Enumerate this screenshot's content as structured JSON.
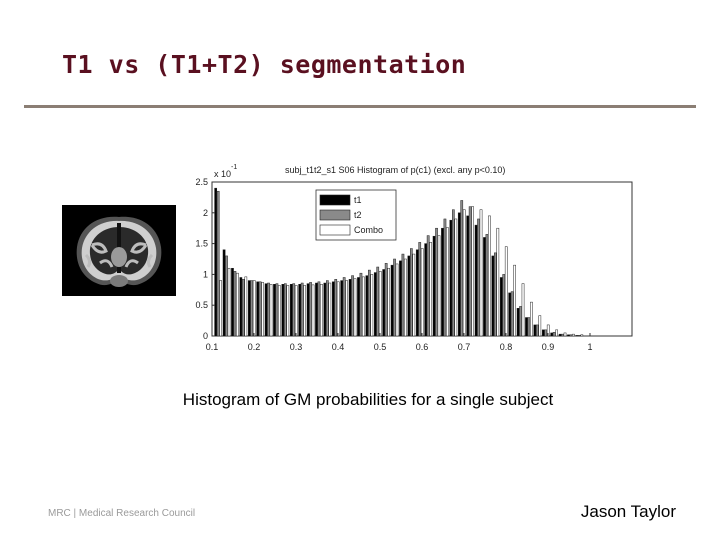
{
  "slide": {
    "title": "T1 vs (T1+T2) segmentation",
    "caption": "Histogram of GM probabilities for a single subject",
    "author": "Jason Taylor",
    "footer_logo": "MRC | Medical Research Council"
  },
  "chart_data": {
    "type": "bar",
    "title": "subj_t1t2_s1 S06 Histogram of p(c1) (excl. any p<0.10)",
    "y_exponent": "x 10",
    "y_exponent_power": "-1",
    "xlabel": "",
    "ylabel": "",
    "xlim": [
      0.1,
      1.0
    ],
    "ylim": [
      0,
      2.5
    ],
    "x_ticks": [
      0.1,
      0.2,
      0.3,
      0.4,
      0.5,
      0.6,
      0.7,
      0.8,
      0.9,
      1
    ],
    "y_ticks": [
      0,
      0.5,
      1,
      1.5,
      2,
      2.5
    ],
    "x_tick_labels": [
      "0.1",
      "0.2",
      "0.3",
      "0.4",
      "0.5",
      "0.6",
      "0.7",
      "0.8",
      "0.9",
      "1"
    ],
    "y_tick_labels": [
      "0",
      "0.5",
      "1",
      "1.5",
      "2",
      "2.5"
    ],
    "bin_centers": [
      0.115,
      0.135,
      0.155,
      0.175,
      0.195,
      0.215,
      0.235,
      0.255,
      0.275,
      0.295,
      0.315,
      0.335,
      0.355,
      0.375,
      0.395,
      0.415,
      0.435,
      0.455,
      0.475,
      0.495,
      0.515,
      0.535,
      0.555,
      0.575,
      0.595,
      0.615,
      0.635,
      0.655,
      0.675,
      0.695,
      0.715,
      0.735,
      0.755,
      0.775,
      0.795,
      0.815,
      0.835,
      0.855,
      0.875,
      0.895,
      0.915,
      0.935,
      0.955,
      0.975
    ],
    "legend_position": "top-left",
    "series": [
      {
        "name": "t1",
        "color": "#000000",
        "values": [
          2.4,
          1.4,
          1.1,
          0.95,
          0.9,
          0.88,
          0.85,
          0.84,
          0.84,
          0.84,
          0.84,
          0.85,
          0.86,
          0.86,
          0.88,
          0.9,
          0.92,
          0.95,
          0.98,
          1.03,
          1.08,
          1.15,
          1.22,
          1.3,
          1.4,
          1.5,
          1.62,
          1.75,
          1.88,
          2.0,
          1.95,
          1.8,
          1.6,
          1.3,
          0.95,
          0.7,
          0.45,
          0.3,
          0.18,
          0.1,
          0.05,
          0.03,
          0.02,
          0.01
        ]
      },
      {
        "name": "t2",
        "color": "#8a8a8a",
        "values": [
          2.35,
          1.3,
          1.05,
          0.92,
          0.9,
          0.88,
          0.86,
          0.85,
          0.85,
          0.85,
          0.86,
          0.87,
          0.88,
          0.9,
          0.92,
          0.95,
          0.98,
          1.02,
          1.07,
          1.12,
          1.18,
          1.25,
          1.33,
          1.42,
          1.52,
          1.63,
          1.75,
          1.9,
          2.05,
          2.2,
          2.1,
          1.9,
          1.65,
          1.35,
          1.0,
          0.72,
          0.48,
          0.3,
          0.18,
          0.1,
          0.06,
          0.03,
          0.02,
          0.01
        ]
      },
      {
        "name": "Combo",
        "color": "#ffffff",
        "values": [
          0.9,
          1.1,
          1.02,
          0.96,
          0.9,
          0.87,
          0.84,
          0.82,
          0.82,
          0.82,
          0.82,
          0.83,
          0.84,
          0.86,
          0.88,
          0.9,
          0.93,
          0.96,
          1.0,
          1.05,
          1.1,
          1.17,
          1.25,
          1.33,
          1.42,
          1.52,
          1.63,
          1.76,
          1.9,
          2.05,
          2.1,
          2.05,
          1.95,
          1.75,
          1.45,
          1.15,
          0.85,
          0.55,
          0.33,
          0.18,
          0.1,
          0.05,
          0.03,
          0.02
        ]
      }
    ]
  }
}
